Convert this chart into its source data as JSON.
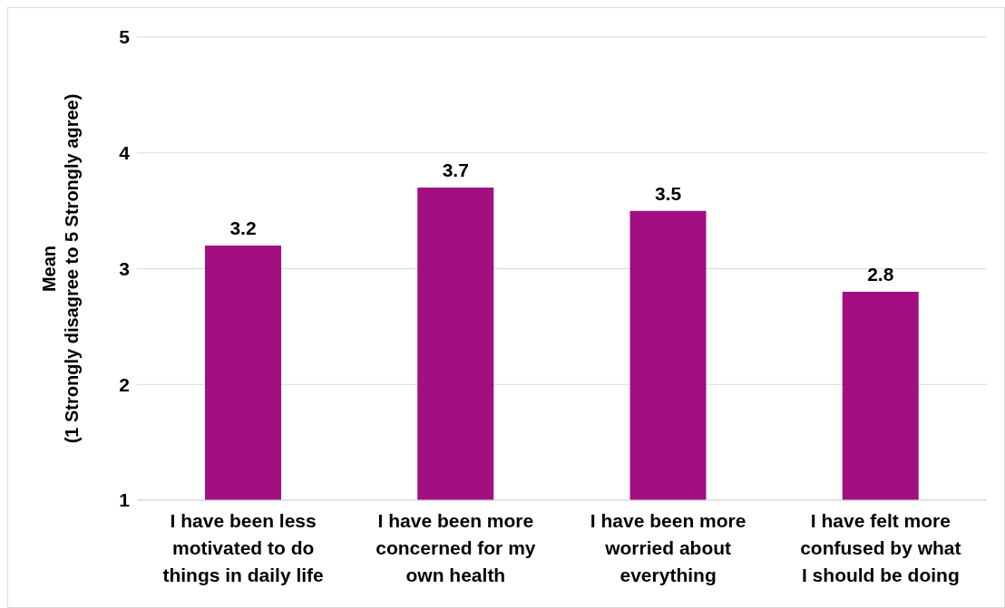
{
  "chart_data": {
    "type": "bar",
    "ylabel": "Mean\n(1 Strongly disagree to 5 Strongly agree)",
    "categories": [
      "I have been less\nmotivated to do\nthings in daily life",
      "I have been more\nconcerned for my\nown health",
      "I have been more\nworried about\neverything",
      "I have felt more\nconfused by what\nI should be doing"
    ],
    "values": [
      3.2,
      3.7,
      3.5,
      2.8
    ],
    "color": "#a20f80",
    "ylim": [
      1,
      5
    ],
    "yticks": [
      1,
      2,
      3,
      4,
      5
    ],
    "grid": "y",
    "data_labels": true
  }
}
